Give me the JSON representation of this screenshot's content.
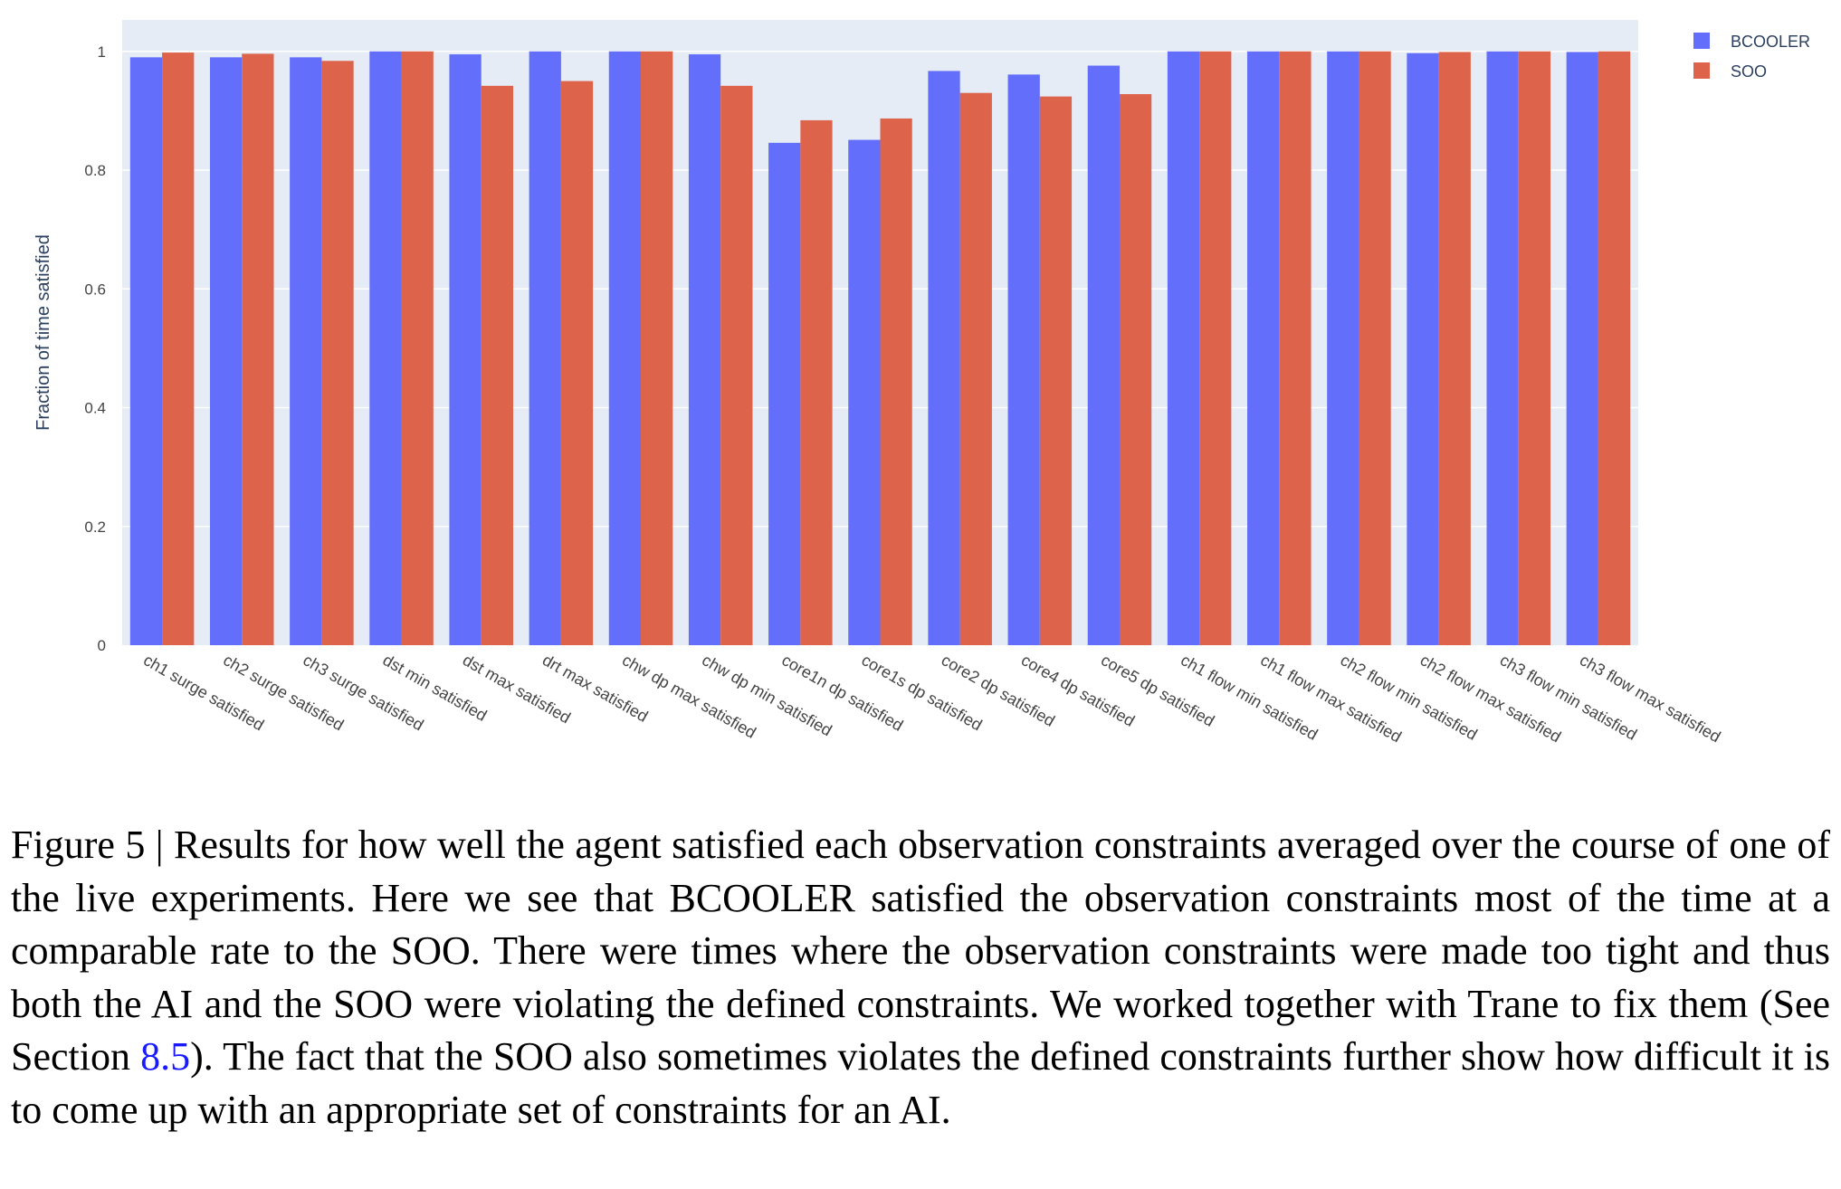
{
  "chart_data": {
    "type": "bar",
    "ylabel": "Fraction of time satisfied",
    "xlabel": "",
    "ylim": [
      0,
      1.053
    ],
    "yticks": [
      0,
      0.2,
      0.4,
      0.6,
      0.8,
      1
    ],
    "ytick_labels": [
      "0",
      "0.2",
      "0.4",
      "0.6",
      "0.8",
      "1"
    ],
    "grid": true,
    "legend_position": "top-right",
    "categories": [
      "ch1 surge satisfied",
      "ch2 surge satisfied",
      "ch3 surge satisfied",
      "dst min satisfied",
      "dst max satisfied",
      "drt max satisfied",
      "chw dp max satisfied",
      "chw dp min satisfied",
      "core1n dp satisfied",
      "core1s dp satisfied",
      "core2 dp satisfied",
      "core4 dp satisfied",
      "core5 dp satisfied",
      "ch1 flow min satisfied",
      "ch1 flow max satisfied",
      "ch2 flow min satisfied",
      "ch2 flow max satisfied",
      "ch3 flow min satisfied",
      "ch3 flow max satisfied"
    ],
    "series": [
      {
        "name": "BCOOLER",
        "color": "#636efa",
        "values": [
          0.99,
          0.99,
          0.99,
          1.0,
          0.995,
          1.0,
          1.0,
          0.995,
          0.846,
          0.851,
          0.967,
          0.961,
          0.976,
          1.0,
          1.0,
          1.0,
          0.997,
          1.0,
          0.999
        ]
      },
      {
        "name": "SOO",
        "color": "#dd644a",
        "values": [
          0.998,
          0.996,
          0.984,
          1.0,
          0.942,
          0.95,
          1.0,
          0.942,
          0.884,
          0.887,
          0.93,
          0.924,
          0.928,
          1.0,
          1.0,
          1.0,
          0.999,
          1.0,
          1.0
        ]
      }
    ]
  },
  "caption": {
    "prefix": "Figure 5 | Results for how well the agent satisfied each observation constraints averaged over the course of one of the live experiments. Here we see that BCOOLER satisfied the observation constraints most of the time at a comparable rate to the SOO. There were times where the observation constraints were made too tight and thus both the AI and the SOO were violating the defined constraints. We worked together with Trane to fix them (See Section ",
    "section_ref": "8.5",
    "suffix": "). The fact that the SOO also sometimes violates the defined constraints further show how difficult it is to come up with an appropriate set of constraints for an AI."
  },
  "colors": {
    "plot_background": "#e5ecf6",
    "gridline": "#ffffff",
    "section_ref_link": "#1a1aff"
  }
}
